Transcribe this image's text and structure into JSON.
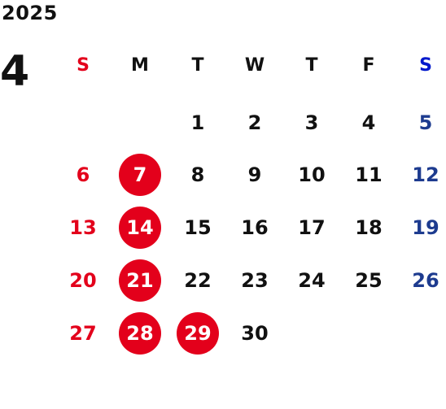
{
  "year": "2025",
  "month": "4",
  "weekdays": [
    "S",
    "M",
    "T",
    "W",
    "T",
    "F",
    "S"
  ],
  "weeks": [
    [
      "",
      "",
      "1",
      "2",
      "3",
      "4",
      "5"
    ],
    [
      "6",
      "7",
      "8",
      "9",
      "10",
      "11",
      "12"
    ],
    [
      "13",
      "14",
      "15",
      "16",
      "17",
      "18",
      "19"
    ],
    [
      "20",
      "21",
      "22",
      "23",
      "24",
      "25",
      "26"
    ],
    [
      "27",
      "28",
      "29",
      "30",
      "",
      "",
      ""
    ]
  ],
  "holidays": [
    "7",
    "14",
    "21",
    "28",
    "29"
  ],
  "colors": {
    "sunday": "#e3001b",
    "saturday": "#1d3b8f",
    "holiday_circle": "#e3001b",
    "weekday": "#111111"
  }
}
